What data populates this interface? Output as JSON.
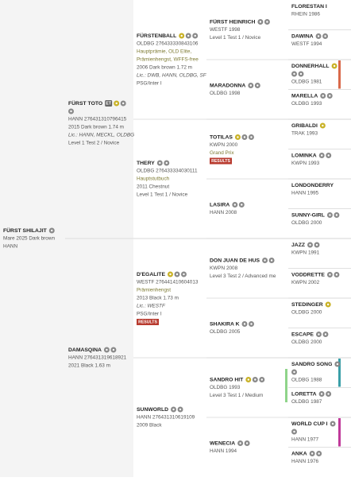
{
  "generations": [
    [
      {
        "name": "FÜRST SHILAJIT",
        "icons": [
          "grey"
        ],
        "lines": [
          "Mare 2025 Dark brown",
          "HANN"
        ]
      }
    ],
    [
      {
        "name": "FÜRST TOTO",
        "badge": "ET",
        "icons": [
          "gold",
          "grey",
          "grey"
        ],
        "lines": [
          "HANN 276431310796415",
          "2015 Dark brown 1.74 m",
          {
            "text": "Lic.: HANN, MECKL, OLDBG",
            "style": "lic"
          },
          "Level 1 Test 2 / Novice"
        ]
      },
      {
        "name": "DAMASQINA",
        "icons": [
          "grey",
          "grey"
        ],
        "lines": [
          "HANN 276431319618921",
          "2021 Black 1.63 m"
        ]
      }
    ],
    [
      {
        "name": "FÜRSTENBALL",
        "icons": [
          "gold",
          "grey",
          "grey"
        ],
        "lines": [
          "OLDBG 276433330843106",
          {
            "text": "Hauptprämie, OLD Elite,",
            "style": "award"
          },
          {
            "text": "Prämienhengst, WFFS-free",
            "style": "award"
          },
          "2006 Dark brown 1.72 m",
          {
            "text": "Lic.: DWB, HANN, OLDBG, SF",
            "style": "lic"
          },
          "PSG/Inter I"
        ]
      },
      {
        "name": "THERY",
        "icons": [
          "grey",
          "grey"
        ],
        "lines": [
          "OLDBG 276433334030111",
          {
            "text": "Hauptstutbuch",
            "style": "award"
          },
          "2011 Chestnut",
          "Level 1 Test 1 / Novice"
        ]
      },
      {
        "name": "D'EGALITE",
        "icons": [
          "gold",
          "grey",
          "grey"
        ],
        "lines": [
          "WESTF 276441410604013",
          {
            "text": "Prämienhengst",
            "style": "award"
          },
          "2013 Black 1.73 m",
          {
            "text": "Lic.: WESTF",
            "style": "lic"
          },
          "PSG/Inter I"
        ],
        "results": "RESULTS"
      },
      {
        "name": "SUNWORLD",
        "icons": [
          "grey",
          "grey"
        ],
        "lines": [
          "HANN 276431310619109",
          "2009 Black"
        ]
      }
    ],
    [
      {
        "name": "FÜRST HEINRICH",
        "icons": [
          "grey",
          "grey"
        ],
        "lines": [
          "WESTF 1998",
          "Level 1 Test 1 / Novice"
        ]
      },
      {
        "name": "MARADONNA",
        "icons": [
          "grey",
          "grey"
        ],
        "lines": [
          "OLDBG 1998"
        ]
      },
      {
        "name": "TOTILAS",
        "icons": [
          "gold",
          "grey",
          "grey"
        ],
        "lines": [
          "KWPN 2000",
          {
            "text": "Grand Prix",
            "style": "award"
          }
        ],
        "results": "RESULTS"
      },
      {
        "name": "LASIRA",
        "icons": [
          "grey",
          "grey"
        ],
        "lines": [
          "HANN 2008"
        ]
      },
      {
        "name": "DON JUAN DE HUS",
        "icons": [
          "grey",
          "grey"
        ],
        "lines": [
          "KWPN 2008",
          "Level 3 Test 2 / Advanced me"
        ]
      },
      {
        "name": "SHAKIRA K",
        "icons": [
          "grey",
          "grey"
        ],
        "lines": [
          "OLDBG 2005"
        ]
      },
      {
        "name": "SANDRO HIT",
        "icons": [
          "gold",
          "grey",
          "grey"
        ],
        "lines": [
          "OLDBG 1993",
          "Level 3 Test 1 / Medium"
        ],
        "bar_color": "#8fd48a"
      },
      {
        "name": "WENECIA",
        "icons": [
          "grey",
          "grey"
        ],
        "lines": [
          "HANN 1994"
        ]
      }
    ],
    [
      {
        "name": "FLORESTAN I",
        "icons": [],
        "lines": [
          "RHEIN 1986"
        ]
      },
      {
        "name": "DAWINA",
        "icons": [
          "grey",
          "grey"
        ],
        "lines": [
          "WESTF 1994"
        ]
      },
      {
        "name": "DONNERHALL",
        "icons": [
          "gold",
          "grey",
          "grey"
        ],
        "lines": [
          "OLDBG 1981"
        ],
        "bar_color": "#d9694a"
      },
      {
        "name": "MARELLA",
        "icons": [
          "grey",
          "grey"
        ],
        "lines": [
          "OLDBG 1993"
        ]
      },
      {
        "name": "GRIBALDI",
        "icons": [
          "gold"
        ],
        "lines": [
          "TRAK 1993"
        ]
      },
      {
        "name": "LOMINKA",
        "icons": [
          "grey",
          "grey"
        ],
        "lines": [
          "KWPN 1993"
        ]
      },
      {
        "name": "LONDONDERRY",
        "icons": [],
        "lines": [
          "HANN 1995"
        ]
      },
      {
        "name": "SUNNY-GIRL",
        "icons": [
          "grey",
          "grey"
        ],
        "lines": [
          "OLDBG 2000"
        ]
      },
      {
        "name": "JAZZ",
        "icons": [
          "grey",
          "grey"
        ],
        "lines": [
          "KWPN 1991"
        ]
      },
      {
        "name": "VODDRETTE",
        "icons": [
          "grey",
          "grey"
        ],
        "lines": [
          "KWPN 2002"
        ]
      },
      {
        "name": "STEDINGER",
        "icons": [
          "gold"
        ],
        "lines": [
          "OLDBG 2000"
        ]
      },
      {
        "name": "ESCAPE",
        "icons": [
          "grey",
          "grey"
        ],
        "lines": [
          "OLDBG 2000"
        ]
      },
      {
        "name": "SANDRO SONG",
        "icons": [
          "grey",
          "grey"
        ],
        "lines": [
          "OLDBG 1988"
        ],
        "bar_color": "#3a9fa8"
      },
      {
        "name": "LORETTA",
        "icons": [
          "grey",
          "grey"
        ],
        "lines": [
          "OLDBG 1987"
        ]
      },
      {
        "name": "WORLD CUP I",
        "icons": [
          "grey",
          "grey"
        ],
        "lines": [
          "HANN 1977"
        ],
        "bar_color": "#c0399a"
      },
      {
        "name": "ANKA",
        "icons": [
          "grey",
          "grey"
        ],
        "lines": [
          "HANN 1976"
        ]
      }
    ]
  ]
}
